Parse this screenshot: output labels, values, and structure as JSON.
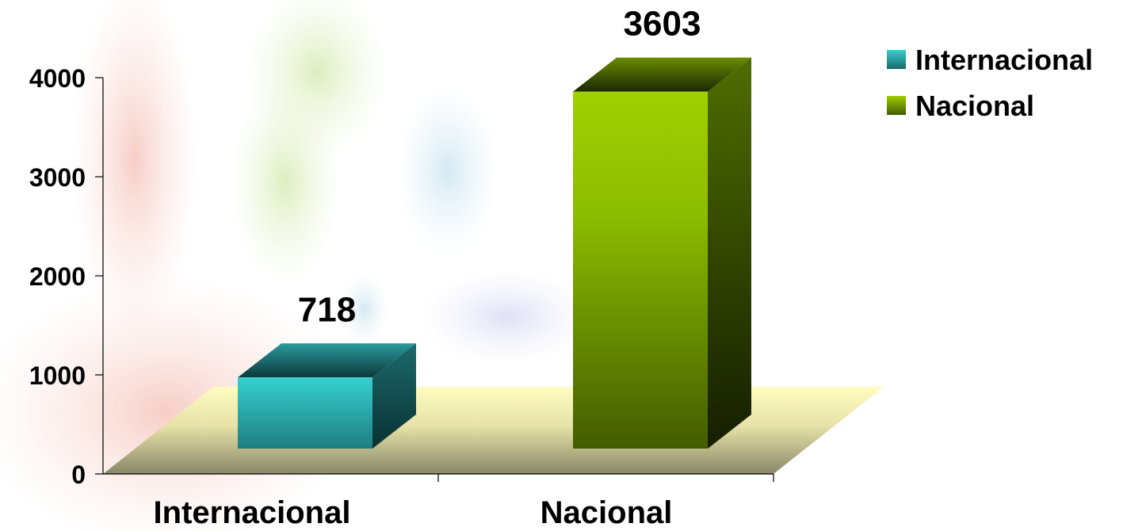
{
  "chart_data": {
    "type": "bar",
    "categories": [
      "Internacional",
      "Nacional"
    ],
    "values": [
      718,
      3603
    ],
    "data_labels": [
      "718",
      "3603"
    ],
    "ylim": [
      0,
      4000
    ],
    "yticks": [
      0,
      1000,
      2000,
      3000,
      4000
    ],
    "legend": {
      "position": "top-right",
      "entries": [
        "Internacional",
        "Nacional"
      ]
    },
    "grid": false,
    "colors": {
      "Internacional": "#2ec8c8",
      "Nacional": "#99cc00",
      "floor": "#fffcc0"
    }
  }
}
